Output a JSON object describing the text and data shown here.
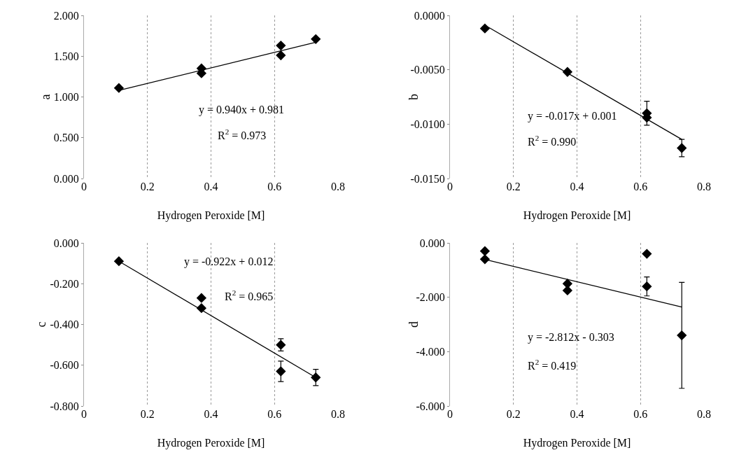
{
  "chart_data": [
    {
      "type": "scatter",
      "xlabel": "Hydrogen Peroxide [M]",
      "ylabel": "a",
      "xlim": [
        0,
        0.8
      ],
      "xticks": [
        0,
        0.2,
        0.4,
        0.6,
        0.8
      ],
      "ylim": [
        0,
        2
      ],
      "yticks": [
        {
          "value": 0,
          "label": "0.000"
        },
        {
          "value": 0.5,
          "label": "0.500"
        },
        {
          "value": 1,
          "label": "1.000"
        },
        {
          "value": 1.5,
          "label": "1.500"
        },
        {
          "value": 2,
          "label": "2.000"
        }
      ],
      "grid": "x",
      "marker": "diamond",
      "annotations": [
        "y = 0.940x + 0.981",
        "R$^{2}$ = 0.973"
      ],
      "series": [
        {
          "type": "scatter",
          "color": "#000000",
          "x": [
            0.11,
            0.37,
            0.37,
            0.62,
            0.62,
            0.73
          ],
          "values": [
            1.11,
            1.35,
            1.29,
            1.63,
            1.51,
            1.71
          ]
        },
        {
          "type": "line",
          "color": "#000000",
          "marker": "none",
          "x": [
            0.11,
            0.73
          ],
          "values": [
            1.08,
            1.67
          ]
        }
      ]
    },
    {
      "type": "scatter",
      "xlabel": "Hydrogen Peroxide [M]",
      "ylabel": "b",
      "xlim": [
        0,
        0.8
      ],
      "xticks": [
        0,
        0.2,
        0.4,
        0.6,
        0.8
      ],
      "ylim": [
        -0.015,
        0
      ],
      "yticks": [
        {
          "value": 0,
          "label": "0.0000"
        },
        {
          "value": -0.005,
          "label": "-0.0050"
        },
        {
          "value": -0.01,
          "label": "-0.0100"
        },
        {
          "value": -0.015,
          "label": "-0.0150"
        }
      ],
      "grid": "x",
      "marker": "diamond",
      "annotations": [
        "y = -0.017x + 0.001",
        "R$^{2}$ = 0.990"
      ],
      "series": [
        {
          "type": "scatter",
          "color": "#000000",
          "x": [
            0.11,
            0.37,
            0.62,
            0.62,
            0.73
          ],
          "values": [
            -0.0012,
            -0.0052,
            -0.009,
            -0.0094,
            -0.0122
          ],
          "errors": [
            null,
            null,
            0.0011,
            null,
            0.0008
          ]
        },
        {
          "type": "line",
          "color": "#000000",
          "marker": "none",
          "x": [
            0.11,
            0.73
          ],
          "values": [
            -0.0009,
            -0.0114
          ]
        }
      ]
    },
    {
      "type": "scatter",
      "xlabel": "Hydrogen Peroxide [M]",
      "ylabel": "c",
      "xlim": [
        0,
        0.8
      ],
      "xticks": [
        0,
        0.2,
        0.4,
        0.6,
        0.8
      ],
      "ylim": [
        -0.8,
        0
      ],
      "yticks": [
        {
          "value": 0,
          "label": "0.000"
        },
        {
          "value": -0.2,
          "label": "-0.200"
        },
        {
          "value": -0.4,
          "label": "-0.400"
        },
        {
          "value": -0.6,
          "label": "-0.600"
        },
        {
          "value": -0.8,
          "label": "-0.800"
        }
      ],
      "grid": "x",
      "marker": "diamond",
      "annotations": [
        "y = -0.922x + 0.012",
        "R$^{2}$ = 0.965"
      ],
      "series": [
        {
          "type": "scatter",
          "color": "#000000",
          "x": [
            0.11,
            0.37,
            0.37,
            0.62,
            0.62,
            0.73
          ],
          "values": [
            -0.09,
            -0.27,
            -0.32,
            -0.5,
            -0.63,
            -0.66
          ],
          "errors": [
            null,
            null,
            null,
            0.03,
            0.05,
            0.04
          ]
        },
        {
          "type": "line",
          "color": "#000000",
          "marker": "none",
          "x": [
            0.11,
            0.73
          ],
          "values": [
            -0.09,
            -0.66
          ]
        }
      ]
    },
    {
      "type": "scatter",
      "xlabel": "Hydrogen Peroxide [M]",
      "ylabel": "d",
      "xlim": [
        0,
        0.8
      ],
      "xticks": [
        0,
        0.2,
        0.4,
        0.6,
        0.8
      ],
      "ylim": [
        -6,
        0
      ],
      "yticks": [
        {
          "value": 0,
          "label": "0.000"
        },
        {
          "value": -2,
          "label": "-2.000"
        },
        {
          "value": -4,
          "label": "-4.000"
        },
        {
          "value": -6,
          "label": "-6.000"
        }
      ],
      "grid": "x",
      "marker": "diamond",
      "annotations": [
        "y = -2.812x - 0.303",
        "R$^{2}$ = 0.419"
      ],
      "series": [
        {
          "type": "scatter",
          "color": "#000000",
          "x": [
            0.11,
            0.11,
            0.37,
            0.37,
            0.62,
            0.62,
            0.73
          ],
          "values": [
            -0.3,
            -0.6,
            -1.5,
            -1.75,
            -0.4,
            -1.6,
            -3.4
          ],
          "errors": [
            null,
            null,
            null,
            null,
            null,
            0.35,
            1.95
          ]
        },
        {
          "type": "line",
          "color": "#000000",
          "marker": "none",
          "x": [
            0.11,
            0.73
          ],
          "values": [
            -0.61,
            -2.36
          ]
        }
      ]
    }
  ]
}
